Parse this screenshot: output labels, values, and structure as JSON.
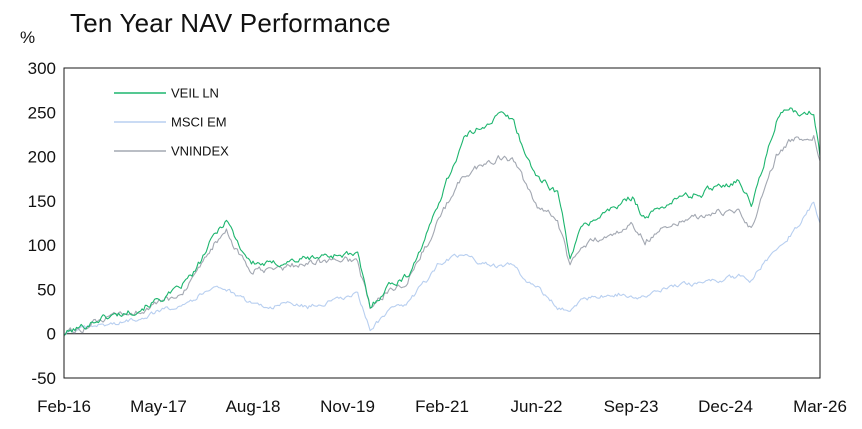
{
  "chart_data": {
    "type": "line",
    "title": "Ten Year NAV Performance",
    "unit_label": "%",
    "xlabel": "",
    "ylabel": "",
    "ylim": [
      -50,
      300
    ],
    "yticks": [
      -50,
      0,
      50,
      100,
      150,
      200,
      250,
      300
    ],
    "xlim": [
      "2016-02",
      "2026-03"
    ],
    "xticks": [
      "Feb-16",
      "May-17",
      "Aug-18",
      "Nov-19",
      "Feb-21",
      "Jun-22",
      "Sep-23",
      "Dec-24",
      "Mar-26"
    ],
    "grid": false,
    "legend": "top-left",
    "series": [
      {
        "name": "VEIL LN",
        "color": "#1db56e",
        "points": [
          [
            "2016-02",
            0
          ],
          [
            "2016-05",
            8
          ],
          [
            "2016-08",
            18
          ],
          [
            "2016-11",
            22
          ],
          [
            "2017-02",
            28
          ],
          [
            "2017-05",
            38
          ],
          [
            "2017-08",
            48
          ],
          [
            "2017-11",
            70
          ],
          [
            "2018-02",
            110
          ],
          [
            "2018-04",
            130
          ],
          [
            "2018-06",
            100
          ],
          [
            "2018-08",
            80
          ],
          [
            "2018-11",
            78
          ],
          [
            "2019-02",
            82
          ],
          [
            "2019-05",
            85
          ],
          [
            "2019-08",
            88
          ],
          [
            "2019-11",
            90
          ],
          [
            "2020-01",
            88
          ],
          [
            "2020-03",
            30
          ],
          [
            "2020-06",
            55
          ],
          [
            "2020-09",
            65
          ],
          [
            "2020-12",
            110
          ],
          [
            "2021-02",
            150
          ],
          [
            "2021-04",
            185
          ],
          [
            "2021-06",
            220
          ],
          [
            "2021-09",
            235
          ],
          [
            "2021-12",
            248
          ],
          [
            "2022-02",
            240
          ],
          [
            "2022-04",
            200
          ],
          [
            "2022-06",
            175
          ],
          [
            "2022-09",
            160
          ],
          [
            "2022-11",
            88
          ],
          [
            "2023-01",
            120
          ],
          [
            "2023-04",
            135
          ],
          [
            "2023-07",
            145
          ],
          [
            "2023-09",
            155
          ],
          [
            "2023-11",
            130
          ],
          [
            "2024-02",
            145
          ],
          [
            "2024-05",
            155
          ],
          [
            "2024-08",
            158
          ],
          [
            "2024-11",
            170
          ],
          [
            "2024-12",
            168
          ],
          [
            "2025-02",
            175
          ],
          [
            "2025-04",
            145
          ],
          [
            "2025-06",
            190
          ],
          [
            "2025-08",
            240
          ],
          [
            "2025-10",
            255
          ],
          [
            "2025-12",
            245
          ],
          [
            "2026-02",
            250
          ],
          [
            "2026-03",
            200
          ]
        ]
      },
      {
        "name": "MSCI EM",
        "color": "#b8cff0",
        "points": [
          [
            "2016-02",
            0
          ],
          [
            "2016-05",
            5
          ],
          [
            "2016-08",
            10
          ],
          [
            "2016-11",
            12
          ],
          [
            "2017-02",
            18
          ],
          [
            "2017-05",
            25
          ],
          [
            "2017-08",
            32
          ],
          [
            "2017-11",
            40
          ],
          [
            "2018-02",
            55
          ],
          [
            "2018-04",
            50
          ],
          [
            "2018-06",
            40
          ],
          [
            "2018-08",
            35
          ],
          [
            "2018-11",
            30
          ],
          [
            "2019-02",
            35
          ],
          [
            "2019-05",
            30
          ],
          [
            "2019-08",
            35
          ],
          [
            "2019-11",
            40
          ],
          [
            "2020-01",
            45
          ],
          [
            "2020-03",
            5
          ],
          [
            "2020-06",
            25
          ],
          [
            "2020-09",
            35
          ],
          [
            "2020-12",
            60
          ],
          [
            "2021-02",
            80
          ],
          [
            "2021-04",
            85
          ],
          [
            "2021-06",
            88
          ],
          [
            "2021-09",
            80
          ],
          [
            "2021-12",
            75
          ],
          [
            "2022-02",
            78
          ],
          [
            "2022-04",
            60
          ],
          [
            "2022-06",
            50
          ],
          [
            "2022-09",
            30
          ],
          [
            "2022-11",
            25
          ],
          [
            "2023-01",
            40
          ],
          [
            "2023-04",
            42
          ],
          [
            "2023-07",
            45
          ],
          [
            "2023-09",
            40
          ],
          [
            "2023-11",
            42
          ],
          [
            "2024-02",
            50
          ],
          [
            "2024-05",
            55
          ],
          [
            "2024-08",
            58
          ],
          [
            "2024-11",
            60
          ],
          [
            "2024-12",
            62
          ],
          [
            "2025-02",
            65
          ],
          [
            "2025-04",
            60
          ],
          [
            "2025-06",
            80
          ],
          [
            "2025-08",
            95
          ],
          [
            "2025-10",
            110
          ],
          [
            "2025-12",
            125
          ],
          [
            "2026-02",
            150
          ],
          [
            "2026-03",
            125
          ]
        ]
      },
      {
        "name": "VNINDEX",
        "color": "#a3a8b2",
        "points": [
          [
            "2016-02",
            0
          ],
          [
            "2016-05",
            6
          ],
          [
            "2016-08",
            15
          ],
          [
            "2016-11",
            20
          ],
          [
            "2017-02",
            25
          ],
          [
            "2017-05",
            34
          ],
          [
            "2017-08",
            42
          ],
          [
            "2017-11",
            62
          ],
          [
            "2018-02",
            100
          ],
          [
            "2018-04",
            115
          ],
          [
            "2018-06",
            88
          ],
          [
            "2018-08",
            72
          ],
          [
            "2018-11",
            70
          ],
          [
            "2019-02",
            76
          ],
          [
            "2019-05",
            80
          ],
          [
            "2019-08",
            82
          ],
          [
            "2019-11",
            84
          ],
          [
            "2020-01",
            82
          ],
          [
            "2020-03",
            28
          ],
          [
            "2020-06",
            50
          ],
          [
            "2020-09",
            60
          ],
          [
            "2020-12",
            100
          ],
          [
            "2021-02",
            128
          ],
          [
            "2021-04",
            155
          ],
          [
            "2021-06",
            180
          ],
          [
            "2021-09",
            190
          ],
          [
            "2021-12",
            200
          ],
          [
            "2022-02",
            195
          ],
          [
            "2022-04",
            165
          ],
          [
            "2022-06",
            140
          ],
          [
            "2022-09",
            130
          ],
          [
            "2022-11",
            75
          ],
          [
            "2023-01",
            100
          ],
          [
            "2023-04",
            108
          ],
          [
            "2023-07",
            115
          ],
          [
            "2023-09",
            125
          ],
          [
            "2023-11",
            105
          ],
          [
            "2024-02",
            120
          ],
          [
            "2024-05",
            130
          ],
          [
            "2024-08",
            132
          ],
          [
            "2024-11",
            138
          ],
          [
            "2024-12",
            135
          ],
          [
            "2025-02",
            138
          ],
          [
            "2025-04",
            120
          ],
          [
            "2025-06",
            160
          ],
          [
            "2025-08",
            200
          ],
          [
            "2025-10",
            218
          ],
          [
            "2025-12",
            220
          ],
          [
            "2026-02",
            225
          ],
          [
            "2026-03",
            195
          ]
        ]
      }
    ]
  }
}
